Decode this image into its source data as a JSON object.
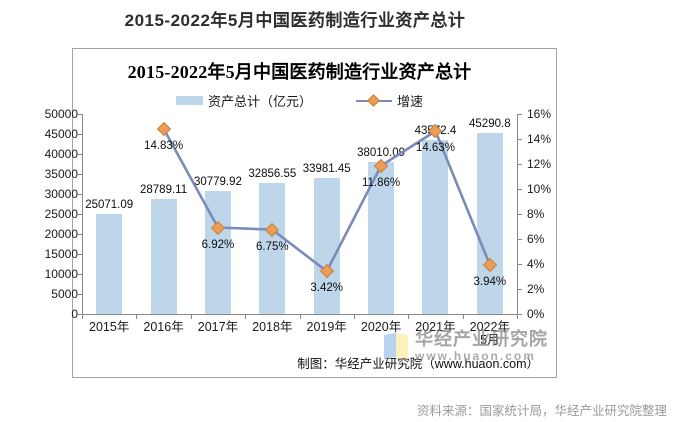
{
  "page": {
    "title": "2015-2022年5月中国医药制造行业资产总计",
    "source_note": "资料来源：国家统计局，华经产业研究院整理"
  },
  "chart": {
    "title": "2015-2022年5月中国医药制造行业资产总计",
    "footer": "制图：华经产业研究院（www.huaon.com）"
  },
  "watermark": {
    "logo": "huajing-logo",
    "line1": "华经产业研究院",
    "line2": "www.huaon.com"
  },
  "colors": {
    "bar": "#BDD6E9",
    "line": "#7B8AB8",
    "marker": "#EC9D55",
    "marker_border": "#C9803E",
    "axis": "#898989",
    "frame_border": "#A3A3A3",
    "watermark_gray": "#878787"
  },
  "chart_data": {
    "type": "bar",
    "combo": "bar+line",
    "title": "2015-2022年5月中国医药制造行业资产总计",
    "categories": [
      "2015年",
      "2016年",
      "2017年",
      "2018年",
      "2019年",
      "2020年",
      "2021年",
      "2022年\n5月"
    ],
    "series": [
      {
        "name": "资产总计（亿元）",
        "type": "bar",
        "axis": "left",
        "values": [
          25071.09,
          28789.11,
          30779.92,
          32856.55,
          33981.45,
          38010.09,
          43572.4,
          45290.8
        ],
        "labels": [
          "25071.09",
          "28789.11",
          "30779.92",
          "32856.55",
          "33981.45",
          "38010.09",
          "43572.4",
          "45290.8"
        ]
      },
      {
        "name": "增速",
        "type": "line",
        "axis": "right",
        "values": [
          null,
          14.83,
          6.92,
          6.75,
          3.42,
          11.86,
          14.63,
          3.94
        ],
        "labels": [
          null,
          "14.83%",
          "6.92%",
          "6.75%",
          "3.42%",
          "11.86%",
          "14.63%",
          "3.94%"
        ]
      }
    ],
    "left_axis": {
      "min": 0,
      "max": 50000,
      "step": 5000,
      "suffix": ""
    },
    "right_axis": {
      "min": 0,
      "max": 16,
      "step": 2,
      "suffix": "%"
    },
    "grid": false,
    "legend_position": "top"
  }
}
